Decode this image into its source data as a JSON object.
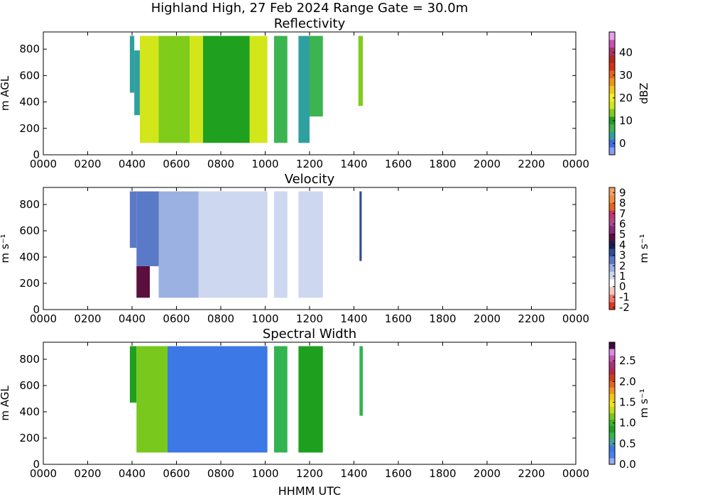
{
  "figure": {
    "suptitle": "Highland High, 27 Feb 2024 Range Gate = 30.0m",
    "xlabel": "HHMM UTC"
  },
  "colormaps": {
    "reflectivity": [
      "#8a9cf0",
      "#3c6ee6",
      "#2fa0a0",
      "#3cb450",
      "#1fa01f",
      "#7fcc1a",
      "#d2e61a",
      "#f5f01e",
      "#f5c814",
      "#f0961a",
      "#e6641e",
      "#d23214",
      "#b4281e",
      "#a8326e",
      "#c84fb4",
      "#e6a0e6"
    ],
    "velocity": [
      "#e0361e",
      "#f07a6e",
      "#f5c8c0",
      "#ffffff",
      "#cdd7f0",
      "#9bb1e1",
      "#5a7ac8",
      "#2d4a9b",
      "#1a1e4e",
      "#5a0f3c",
      "#8c2878",
      "#b4468c",
      "#c8326e",
      "#e6641e",
      "#f58c3c",
      "#f5a064"
    ],
    "spectral_width": [
      "#9aaaf0",
      "#4682f0",
      "#3c78e6",
      "#46a0a0",
      "#32b450",
      "#1ea01e",
      "#3cb41e",
      "#78c81e",
      "#c8dc14",
      "#f0e614",
      "#f0c814",
      "#f0961e",
      "#e6641e",
      "#d23c14",
      "#b42850",
      "#a83278",
      "#c850b4",
      "#dc8ce6",
      "#3c0a3c"
    ]
  },
  "chart_data": [
    {
      "type": "heatmap",
      "title": "Reflectivity",
      "ylabel": "m AGL",
      "colorbar_label": "dBZ",
      "x_ticks": [
        "0000",
        "0200",
        "0400",
        "0600",
        "0800",
        "1000",
        "1200",
        "1400",
        "1600",
        "1800",
        "2000",
        "2200",
        "0000"
      ],
      "x_range_hours": [
        0,
        24
      ],
      "y_ticks": [
        0,
        200,
        400,
        600,
        800
      ],
      "ylim": [
        0,
        930
      ],
      "colorbar_ticks": [
        0,
        10,
        20,
        30,
        40
      ],
      "colorbar_range": [
        -5,
        49
      ],
      "swaths": [
        {
          "start_hour": 3.9,
          "end_hour": 4.1,
          "bottom": 470,
          "top": 900,
          "value": 3
        },
        {
          "start_hour": 4.1,
          "end_hour": 4.35,
          "bottom": 300,
          "top": 790,
          "value": 2
        },
        {
          "start_hour": 4.35,
          "end_hour": 5.2,
          "bottom": 90,
          "top": 900,
          "value": 18
        },
        {
          "start_hour": 5.2,
          "end_hour": 6.6,
          "bottom": 90,
          "top": 900,
          "value": 15
        },
        {
          "start_hour": 6.6,
          "end_hour": 7.2,
          "bottom": 90,
          "top": 900,
          "value": 18
        },
        {
          "start_hour": 7.2,
          "end_hour": 9.3,
          "bottom": 90,
          "top": 900,
          "value": 11
        },
        {
          "start_hour": 9.3,
          "end_hour": 10.1,
          "bottom": 90,
          "top": 900,
          "value": 18
        },
        {
          "start_hour": 10.4,
          "end_hour": 11.0,
          "bottom": 90,
          "top": 900,
          "value": 7
        },
        {
          "start_hour": 11.5,
          "end_hour": 12.0,
          "bottom": 90,
          "top": 900,
          "value": 2
        },
        {
          "start_hour": 12.0,
          "end_hour": 12.6,
          "bottom": 290,
          "top": 900,
          "value": 6
        },
        {
          "start_hour": 14.2,
          "end_hour": 14.4,
          "bottom": 370,
          "top": 900,
          "value": 14
        }
      ]
    },
    {
      "type": "heatmap",
      "title": "Velocity",
      "ylabel": "m s⁻¹",
      "colorbar_label": "m s⁻¹",
      "x_ticks": [
        "0000",
        "0200",
        "0400",
        "0600",
        "0800",
        "1000",
        "1200",
        "1400",
        "1600",
        "1800",
        "2000",
        "2200",
        "0000"
      ],
      "x_range_hours": [
        0,
        24
      ],
      "y_ticks": [
        0,
        200,
        400,
        600,
        800
      ],
      "ylim": [
        0,
        930
      ],
      "colorbar_ticks": [
        -2,
        -1,
        0,
        1,
        2,
        3,
        4,
        5,
        6,
        7,
        8,
        9
      ],
      "colorbar_range": [
        -2.2,
        9.5
      ],
      "swaths": [
        {
          "start_hour": 3.9,
          "end_hour": 4.2,
          "bottom": 470,
          "top": 900,
          "value": 2.5
        },
        {
          "start_hour": 4.2,
          "end_hour": 4.8,
          "bottom": 90,
          "top": 330,
          "value": 5
        },
        {
          "start_hour": 4.2,
          "end_hour": 5.2,
          "bottom": 330,
          "top": 900,
          "value": 2.5
        },
        {
          "start_hour": 5.2,
          "end_hour": 7.0,
          "bottom": 90,
          "top": 900,
          "value": 1.5
        },
        {
          "start_hour": 7.0,
          "end_hour": 10.1,
          "bottom": 90,
          "top": 900,
          "value": 1.1
        },
        {
          "start_hour": 10.4,
          "end_hour": 11.0,
          "bottom": 90,
          "top": 900,
          "value": 1.4
        },
        {
          "start_hour": 11.5,
          "end_hour": 12.6,
          "bottom": 90,
          "top": 900,
          "value": 0.9
        },
        {
          "start_hour": 14.25,
          "end_hour": 14.35,
          "bottom": 370,
          "top": 900,
          "value": 3
        }
      ]
    },
    {
      "type": "heatmap",
      "title": "Spectral Width",
      "ylabel": "m AGL",
      "colorbar_label": "m s⁻¹",
      "x_ticks": [
        "0000",
        "0200",
        "0400",
        "0600",
        "0800",
        "1000",
        "1200",
        "1400",
        "1600",
        "1800",
        "2000",
        "2200",
        "0000"
      ],
      "x_range_hours": [
        0,
        24
      ],
      "y_ticks": [
        0,
        200,
        400,
        600,
        800
      ],
      "ylim": [
        0,
        930
      ],
      "colorbar_ticks": [
        "0.0",
        "0.5",
        "1.0",
        "1.5",
        "2.0",
        "2.5"
      ],
      "colorbar_range": [
        0,
        2.95
      ],
      "swaths": [
        {
          "start_hour": 3.9,
          "end_hour": 4.2,
          "bottom": 470,
          "top": 900,
          "value": 0.9
        },
        {
          "start_hour": 4.2,
          "end_hour": 5.6,
          "bottom": 90,
          "top": 900,
          "value": 1.2
        },
        {
          "start_hour": 5.6,
          "end_hour": 10.1,
          "bottom": 90,
          "top": 900,
          "value": 0.45
        },
        {
          "start_hour": 10.4,
          "end_hour": 11.0,
          "bottom": 90,
          "top": 900,
          "value": 0.7
        },
        {
          "start_hour": 11.5,
          "end_hour": 12.6,
          "bottom": 90,
          "top": 900,
          "value": 0.8
        },
        {
          "start_hour": 14.25,
          "end_hour": 14.4,
          "bottom": 370,
          "top": 900,
          "value": 0.7
        }
      ]
    }
  ]
}
